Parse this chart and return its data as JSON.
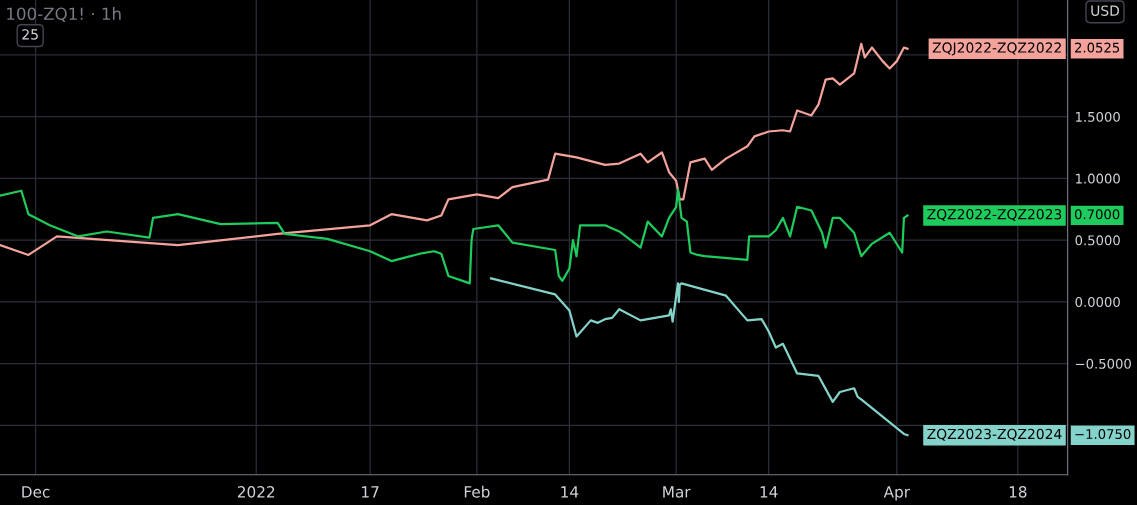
{
  "chart_data": {
    "type": "line",
    "title": "100-ZQ1! · 1h",
    "annotations": [
      "USD",
      "25",
      "2.0525",
      "0.7000",
      "−1.0750"
    ],
    "xlim": [
      "2021-11-26",
      "2022-04-25"
    ],
    "xticks": [
      {
        "value": "2021-12-01",
        "label": "Dec"
      },
      {
        "value": "2022-01-01",
        "label": "2022"
      },
      {
        "value": "2022-01-17",
        "label": "17"
      },
      {
        "value": "2022-02-01",
        "label": "Feb"
      },
      {
        "value": "2022-02-14",
        "label": "14"
      },
      {
        "value": "2022-03-01",
        "label": "Mar"
      },
      {
        "value": "2022-03-14",
        "label": "14"
      },
      {
        "value": "2022-04-01",
        "label": "Apr"
      },
      {
        "value": "2022-04-18",
        "label": "18"
      }
    ],
    "ylim": [
      -1.4,
      2.445
    ],
    "yticks": [
      {
        "value": -1.0,
        "label": null
      },
      {
        "value": -0.5,
        "label": "−0.5000"
      },
      {
        "value": 0,
        "label": "0.0000"
      },
      {
        "value": 0.5,
        "label": "0.5000"
      },
      {
        "value": 1.0,
        "label": "1.0000"
      },
      {
        "value": 1.5,
        "label": "1.5000"
      },
      {
        "value": 2.0,
        "label": null
      }
    ],
    "grid": true,
    "legend": "right",
    "marker": "none",
    "line_style": "solid",
    "series": [
      {
        "name": "ZQJ2022-ZQZ2022",
        "color": "#f4a39c",
        "x": [
          "2021-11-26",
          "2021-11-30",
          "2021-12-04",
          "2021-12-21",
          "2022-01-04",
          "2022-01-17",
          "2022-01-20",
          "2022-01-25",
          "2022-01-27",
          "2022-01-28",
          "2022-02-01",
          "2022-02-04",
          "2022-02-06",
          "2022-02-11",
          "2022-02-12",
          "2022-02-15",
          "2022-02-19",
          "2022-02-21",
          "2022-02-24",
          "2022-02-25",
          "2022-02-27",
          "2022-02-28",
          "2022-03-01",
          "2022-03-01T12:00",
          "2022-03-02",
          "2022-03-03",
          "2022-03-05",
          "2022-03-06",
          "2022-03-08",
          "2022-03-11",
          "2022-03-12",
          "2022-03-14",
          "2022-03-16",
          "2022-03-17",
          "2022-03-18",
          "2022-03-20",
          "2022-03-21",
          "2022-03-22",
          "2022-03-23",
          "2022-03-24",
          "2022-03-26",
          "2022-03-26T12:00",
          "2022-03-27",
          "2022-03-27T12:00",
          "2022-03-28T12:00",
          "2022-03-30",
          "2022-03-31",
          "2022-04-01",
          "2022-04-02",
          "2022-04-02T12:00"
        ],
        "values": [
          0.46,
          0.38,
          0.53,
          0.46,
          0.55,
          0.62,
          0.71,
          0.66,
          0.7,
          0.83,
          0.87,
          0.84,
          0.93,
          0.99,
          1.2,
          1.17,
          1.11,
          1.12,
          1.2,
          1.13,
          1.21,
          1.05,
          0.98,
          0.83,
          0.83,
          1.13,
          1.16,
          1.07,
          1.16,
          1.26,
          1.34,
          1.38,
          1.39,
          1.38,
          1.55,
          1.51,
          1.6,
          1.8,
          1.81,
          1.76,
          1.85,
          1.97,
          2.09,
          1.98,
          2.06,
          1.95,
          1.89,
          1.95,
          2.06,
          2.05
        ]
      },
      {
        "name": "ZQZ2022-ZQZ2023",
        "color": "#1ecb5c",
        "x": [
          "2021-11-26",
          "2021-11-29",
          "2021-11-30",
          "2021-12-03",
          "2021-12-07",
          "2021-12-11",
          "2021-12-17",
          "2021-12-17T12:00",
          "2021-12-21",
          "2021-12-27",
          "2022-01-04",
          "2022-01-05",
          "2022-01-11",
          "2022-01-17",
          "2022-01-20",
          "2022-01-24",
          "2022-01-26",
          "2022-01-27",
          "2022-01-28",
          "2022-01-30",
          "2022-01-31",
          "2022-01-31T06:00",
          "2022-01-31T12:00",
          "2022-02-04",
          "2022-02-06",
          "2022-02-12",
          "2022-02-12T12:00",
          "2022-02-13",
          "2022-02-14",
          "2022-02-14T12:00",
          "2022-02-15",
          "2022-02-15T12:00",
          "2022-02-19",
          "2022-02-21",
          "2022-02-24",
          "2022-02-25",
          "2022-02-27",
          "2022-02-28",
          "2022-03-01",
          "2022-03-01T06:00",
          "2022-03-01T18:00",
          "2022-03-02T12:00",
          "2022-03-03",
          "2022-03-04",
          "2022-03-05",
          "2022-03-11",
          "2022-03-11T06:00",
          "2022-03-14",
          "2022-03-15",
          "2022-03-16",
          "2022-03-17",
          "2022-03-18",
          "2022-03-20",
          "2022-03-21T12:00",
          "2022-03-22",
          "2022-03-23",
          "2022-03-24",
          "2022-03-26",
          "2022-03-27",
          "2022-03-28T12:00",
          "2022-03-31",
          "2022-04-01T18:00",
          "2022-04-02",
          "2022-04-02T12:00"
        ],
        "values": [
          0.86,
          0.9,
          0.71,
          0.62,
          0.53,
          0.57,
          0.52,
          0.68,
          0.71,
          0.63,
          0.64,
          0.55,
          0.51,
          0.41,
          0.33,
          0.39,
          0.41,
          0.39,
          0.21,
          0.17,
          0.15,
          0.5,
          0.59,
          0.62,
          0.48,
          0.42,
          0.21,
          0.17,
          0.27,
          0.5,
          0.37,
          0.62,
          0.62,
          0.57,
          0.44,
          0.65,
          0.53,
          0.68,
          0.77,
          0.91,
          0.68,
          0.65,
          0.4,
          0.38,
          0.37,
          0.34,
          0.53,
          0.53,
          0.58,
          0.68,
          0.53,
          0.77,
          0.74,
          0.56,
          0.44,
          0.68,
          0.68,
          0.56,
          0.37,
          0.47,
          0.56,
          0.4,
          0.68,
          0.7
        ]
      },
      {
        "name": "ZQZ2023-ZQZ2024",
        "color": "#84d3cb",
        "x": [
          "2022-02-03",
          "2022-02-12",
          "2022-02-14",
          "2022-02-15",
          "2022-02-17",
          "2022-02-18",
          "2022-02-19",
          "2022-02-20",
          "2022-02-21",
          "2022-02-24",
          "2022-02-28",
          "2022-02-28T06:00",
          "2022-02-28T12:00",
          "2022-03-01T06:00",
          "2022-03-01T09:00",
          "2022-03-01T12:00",
          "2022-03-01T18:00",
          "2022-03-08",
          "2022-03-11",
          "2022-03-13",
          "2022-03-14",
          "2022-03-15",
          "2022-03-16",
          "2022-03-18",
          "2022-03-21",
          "2022-03-23",
          "2022-03-24",
          "2022-03-26",
          "2022-03-26T12:00",
          "2022-03-27",
          "2022-04-02",
          "2022-04-02T12:00"
        ],
        "values": [
          0.19,
          0.06,
          -0.07,
          -0.28,
          -0.15,
          -0.17,
          -0.14,
          -0.13,
          -0.06,
          -0.15,
          -0.11,
          -0.06,
          -0.16,
          0.15,
          0.0,
          0.14,
          0.15,
          0.05,
          -0.15,
          -0.14,
          -0.24,
          -0.37,
          -0.34,
          -0.58,
          -0.6,
          -0.81,
          -0.73,
          -0.7,
          -0.77,
          -0.79,
          -1.07,
          -1.08
        ]
      }
    ]
  }
}
